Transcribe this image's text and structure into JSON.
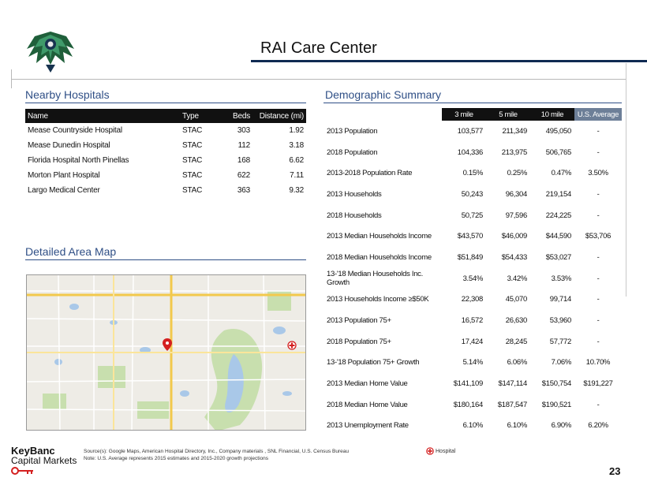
{
  "title": "RAI Care Center",
  "sections": {
    "nearby": "Nearby Hospitals",
    "demographic": "Demographic Summary",
    "map": "Detailed Area Map"
  },
  "hospitals": {
    "headers": [
      "Name",
      "Type",
      "Beds",
      "Distance (mi)"
    ],
    "rows": [
      [
        "Mease Countryside Hospital",
        "STAC",
        "303",
        "1.92"
      ],
      [
        "Mease Dunedin Hospital",
        "STAC",
        "112",
        "3.18"
      ],
      [
        "Florida Hospital North Pinellas",
        "STAC",
        "168",
        "6.62"
      ],
      [
        "Morton Plant Hospital",
        "STAC",
        "622",
        "7.11"
      ],
      [
        "Largo Medical Center",
        "STAC",
        "363",
        "9.32"
      ]
    ]
  },
  "demographics": {
    "headers": [
      "3 mile",
      "5 mile",
      "10 mile",
      "U.S. Average"
    ],
    "rows": [
      [
        "2013 Population",
        "103,577",
        "211,349",
        "495,050",
        "-"
      ],
      [
        "2018 Population",
        "104,336",
        "213,975",
        "506,765",
        "-"
      ],
      [
        "2013-2018 Population Rate",
        "0.15%",
        "0.25%",
        "0.47%",
        "3.50%"
      ],
      [
        "2013 Households",
        "50,243",
        "96,304",
        "219,154",
        "-"
      ],
      [
        "2018 Households",
        "50,725",
        "97,596",
        "224,225",
        "-"
      ],
      [
        "2013 Median Households Income",
        "$43,570",
        "$46,009",
        "$44,590",
        "$53,706"
      ],
      [
        "2018 Median Households Income",
        "$51,849",
        "$54,433",
        "$53,027",
        "-"
      ],
      [
        "13-'18 Median Households Inc. Growth",
        "3.54%",
        "3.42%",
        "3.53%",
        "-"
      ],
      [
        "2013 Households Income ≥$50K",
        "22,308",
        "45,070",
        "99,714",
        "-"
      ],
      [
        "2013 Population 75+",
        "16,572",
        "26,630",
        "53,960",
        "-"
      ],
      [
        "2018 Population 75+",
        "17,424",
        "28,245",
        "57,772",
        "-"
      ],
      [
        "13-'18 Population 75+ Growth",
        "5.14%",
        "6.06%",
        "7.06%",
        "10.70%"
      ],
      [
        "2013 Median Home Value",
        "$141,109",
        "$147,114",
        "$150,754",
        "$191,227"
      ],
      [
        "2018 Median Home Value",
        "$180,164",
        "$187,547",
        "$190,521",
        "-"
      ],
      [
        "2013 Unemployment Rate",
        "6.10%",
        "6.10%",
        "6.90%",
        "6.20%"
      ]
    ]
  },
  "footer": {
    "brand_line1": "KeyBanc",
    "brand_line2": "Capital Markets",
    "sources": "Source(s): Google Maps, American Hospital Directory, Inc., Company materials , SNL Financial, U.S. Census Bureau",
    "note": "Note: U.S. Average represents 2015 estimates and 2015-2020 growth projections",
    "legend_label": "Hospital",
    "page_number": "23"
  },
  "colors": {
    "accent_blue": "#2f4f86",
    "title_rule": "#0f2a52",
    "header_dark": "#111111",
    "us_header": "#6d7f98",
    "hospital_red": "#d42020",
    "map_road_yellow": "#f2c94c",
    "map_water": "#a9c8e8",
    "map_park": "#c8dfae"
  },
  "icons": {
    "logo": "eagle-logo-icon",
    "hospital": "hospital-cross-icon",
    "key": "key-icon",
    "location": "map-pin-icon"
  }
}
